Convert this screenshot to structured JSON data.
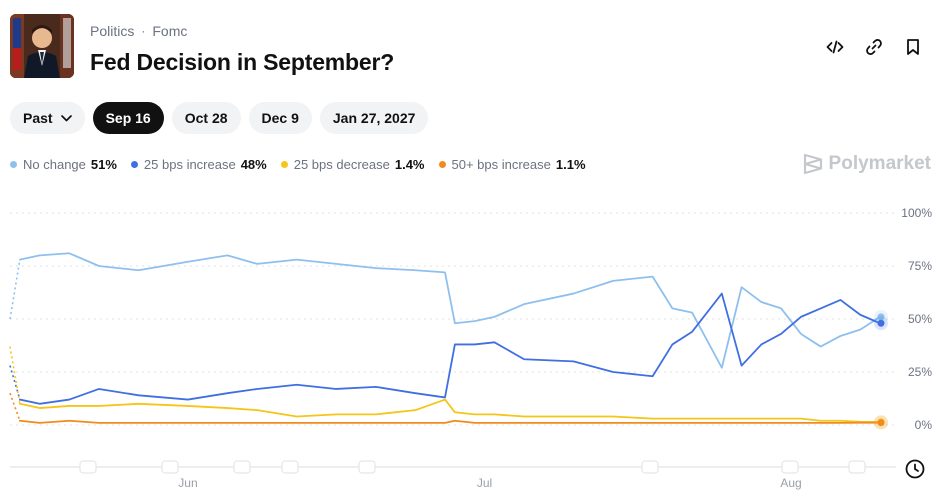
{
  "header": {
    "breadcrumb": [
      "Politics",
      "Fomc"
    ],
    "separator": "·",
    "title": "Fed Decision in September?"
  },
  "actions": [
    {
      "name": "embed-icon",
      "label": "embed"
    },
    {
      "name": "link-icon",
      "label": "link"
    },
    {
      "name": "bookmark-icon",
      "label": "bookmark"
    }
  ],
  "date_filters": [
    {
      "label": "Past",
      "active": false,
      "dropdown": true
    },
    {
      "label": "Sep 16",
      "active": true
    },
    {
      "label": "Oct 28",
      "active": false
    },
    {
      "label": "Dec 9",
      "active": false
    },
    {
      "label": "Jan 27, 2027",
      "active": false
    }
  ],
  "brand": "Polymarket",
  "colors": {
    "no_change": "#8ec0ee",
    "bps25_increase": "#3f6fe0",
    "bps25_decrease": "#f5c518",
    "bps50_increase": "#f08b1d",
    "grid": "#dfe2e6",
    "axis_text": "#9aa0a6"
  },
  "chart_data": {
    "type": "line",
    "title": "",
    "xlabel": "",
    "ylabel": "",
    "ylim": [
      0,
      100
    ],
    "y_ticks": [
      "0%",
      "25%",
      "50%",
      "75%",
      "100%"
    ],
    "x_ticks": [
      {
        "label": "Jun",
        "date": "2025-06-01"
      },
      {
        "label": "Jul",
        "date": "2025-07-01"
      },
      {
        "label": "Aug",
        "date": "2025-08-01"
      }
    ],
    "grid": true,
    "legend_position": "top-left",
    "series": [
      {
        "name": "No change",
        "display": "51%",
        "color": "#8ec0ee",
        "x": [
          "2025-05-14",
          "2025-05-15",
          "2025-05-17",
          "2025-05-20",
          "2025-05-23",
          "2025-05-27",
          "2025-06-01",
          "2025-06-05",
          "2025-06-08",
          "2025-06-12",
          "2025-06-16",
          "2025-06-20",
          "2025-06-24",
          "2025-06-27",
          "2025-06-28",
          "2025-06-30",
          "2025-07-02",
          "2025-07-05",
          "2025-07-10",
          "2025-07-14",
          "2025-07-18",
          "2025-07-20",
          "2025-07-22",
          "2025-07-25",
          "2025-07-27",
          "2025-07-29",
          "2025-07-31",
          "2025-08-02",
          "2025-08-04",
          "2025-08-06",
          "2025-08-08",
          "2025-08-10"
        ],
        "values": [
          50,
          78,
          80,
          81,
          75,
          73,
          77,
          80,
          76,
          78,
          76,
          74,
          73,
          72,
          48,
          49,
          51,
          57,
          62,
          68,
          70,
          55,
          53,
          27,
          65,
          58,
          55,
          43,
          37,
          42,
          45,
          51
        ]
      },
      {
        "name": "25 bps increase",
        "display": "48%",
        "color": "#3f6fe0",
        "x": [
          "2025-05-14",
          "2025-05-15",
          "2025-05-17",
          "2025-05-20",
          "2025-05-23",
          "2025-05-27",
          "2025-06-01",
          "2025-06-05",
          "2025-06-08",
          "2025-06-12",
          "2025-06-16",
          "2025-06-20",
          "2025-06-24",
          "2025-06-27",
          "2025-06-28",
          "2025-06-30",
          "2025-07-02",
          "2025-07-05",
          "2025-07-10",
          "2025-07-14",
          "2025-07-18",
          "2025-07-20",
          "2025-07-22",
          "2025-07-25",
          "2025-07-27",
          "2025-07-29",
          "2025-07-31",
          "2025-08-02",
          "2025-08-04",
          "2025-08-06",
          "2025-08-08",
          "2025-08-10"
        ],
        "values": [
          28,
          12,
          10,
          12,
          17,
          14,
          12,
          15,
          17,
          19,
          17,
          18,
          15,
          13,
          38,
          38,
          39,
          31,
          30,
          25,
          23,
          38,
          44,
          62,
          28,
          38,
          43,
          51,
          55,
          59,
          52,
          48
        ]
      },
      {
        "name": "25 bps decrease",
        "display": "1.4%",
        "color": "#f5c518",
        "x": [
          "2025-05-14",
          "2025-05-15",
          "2025-05-17",
          "2025-05-20",
          "2025-05-23",
          "2025-05-27",
          "2025-06-01",
          "2025-06-05",
          "2025-06-08",
          "2025-06-12",
          "2025-06-16",
          "2025-06-20",
          "2025-06-24",
          "2025-06-27",
          "2025-06-28",
          "2025-06-30",
          "2025-07-02",
          "2025-07-05",
          "2025-07-10",
          "2025-07-14",
          "2025-07-18",
          "2025-07-20",
          "2025-07-22",
          "2025-07-25",
          "2025-07-27",
          "2025-07-29",
          "2025-07-31",
          "2025-08-02",
          "2025-08-04",
          "2025-08-06",
          "2025-08-08",
          "2025-08-10"
        ],
        "values": [
          37,
          10,
          8,
          9,
          9,
          10,
          9,
          8,
          7,
          4,
          5,
          5,
          7,
          12,
          6,
          5,
          5,
          4,
          4,
          4,
          3,
          3,
          3,
          3,
          3,
          3,
          3,
          3,
          2,
          2,
          1.5,
          1.4
        ]
      },
      {
        "name": "50+ bps increase",
        "display": "1.1%",
        "color": "#f08b1d",
        "x": [
          "2025-05-14",
          "2025-05-15",
          "2025-05-17",
          "2025-05-20",
          "2025-05-23",
          "2025-05-27",
          "2025-06-01",
          "2025-06-05",
          "2025-06-08",
          "2025-06-12",
          "2025-06-16",
          "2025-06-20",
          "2025-06-24",
          "2025-06-27",
          "2025-06-28",
          "2025-06-30",
          "2025-07-02",
          "2025-07-05",
          "2025-07-10",
          "2025-07-14",
          "2025-07-18",
          "2025-07-20",
          "2025-07-22",
          "2025-07-25",
          "2025-07-27",
          "2025-07-29",
          "2025-07-31",
          "2025-08-02",
          "2025-08-04",
          "2025-08-06",
          "2025-08-08",
          "2025-08-10"
        ],
        "values": [
          15,
          2,
          1,
          2,
          1,
          1,
          1,
          1,
          1,
          1,
          1,
          1,
          1,
          1,
          2,
          1,
          1,
          1,
          1,
          1,
          1,
          1,
          1,
          1,
          1,
          1,
          1,
          1,
          1,
          1,
          1.1,
          1.1
        ]
      }
    ]
  }
}
